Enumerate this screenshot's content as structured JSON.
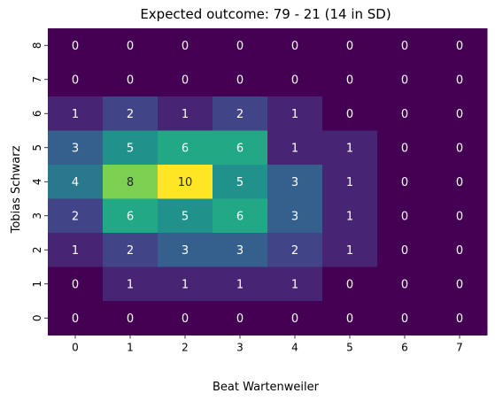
{
  "chart_data": {
    "type": "heatmap",
    "title": "Expected outcome: 79 - 21 (14 in SD)",
    "xlabel": "Beat Wartenweiler",
    "ylabel": "Tobias Schwarz",
    "x_ticks": [
      "0",
      "1",
      "2",
      "3",
      "4",
      "5",
      "6",
      "7"
    ],
    "y_ticks": [
      "8",
      "7",
      "6",
      "5",
      "4",
      "3",
      "2",
      "1",
      "0"
    ],
    "colormap": "viridis",
    "value_range": [
      0,
      10
    ],
    "grid": false,
    "values": [
      [
        0,
        0,
        0,
        0,
        0,
        0,
        0,
        0
      ],
      [
        0,
        0,
        0,
        0,
        0,
        0,
        0,
        0
      ],
      [
        1,
        2,
        1,
        2,
        1,
        0,
        0,
        0
      ],
      [
        3,
        5,
        6,
        6,
        1,
        1,
        0,
        0
      ],
      [
        4,
        8,
        10,
        5,
        3,
        1,
        0,
        0
      ],
      [
        2,
        6,
        5,
        6,
        3,
        1,
        0,
        0
      ],
      [
        1,
        2,
        3,
        3,
        2,
        1,
        0,
        0
      ],
      [
        0,
        1,
        1,
        1,
        1,
        0,
        0,
        0
      ],
      [
        0,
        0,
        0,
        0,
        0,
        0,
        0,
        0
      ]
    ]
  }
}
